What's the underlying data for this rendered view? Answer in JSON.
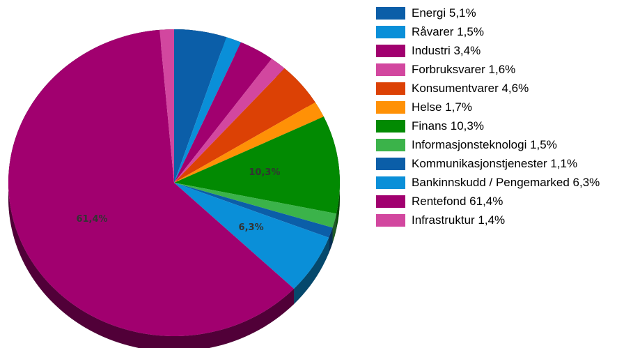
{
  "chart_data": {
    "type": "pie",
    "categories": [
      "Energi 5,1%",
      "Råvarer 1,5%",
      "Industri 3,4%",
      "Forbruksvarer 1,6%",
      "Konsumentvarer 4,6%",
      "Helse 1,7%",
      "Finans 10,3%",
      "Informasjonsteknologi 1,5%",
      "Kommunikasjonstjenester 1,1%",
      "Bankinnskudd / Pengemarked 6,3%",
      "Rentefond 61,4%",
      "Infrastruktur 1,4%"
    ],
    "values": [
      5.1,
      1.5,
      3.4,
      1.6,
      4.6,
      1.7,
      10.3,
      1.5,
      1.1,
      6.3,
      61.4,
      1.4
    ],
    "value_labels": [
      null,
      null,
      null,
      null,
      null,
      null,
      "10,3%",
      null,
      null,
      "6,3%",
      "61,4%",
      null
    ],
    "colors": [
      "#0b5ea8",
      "#0a8fd8",
      "#a1006f",
      "#d2479f",
      "#dc4105",
      "#ff9106",
      "#028a02",
      "#3bb34a",
      "#0b5ea8",
      "#0a8fd8",
      "#a1006f",
      "#d2479f"
    ],
    "legend": "right"
  }
}
